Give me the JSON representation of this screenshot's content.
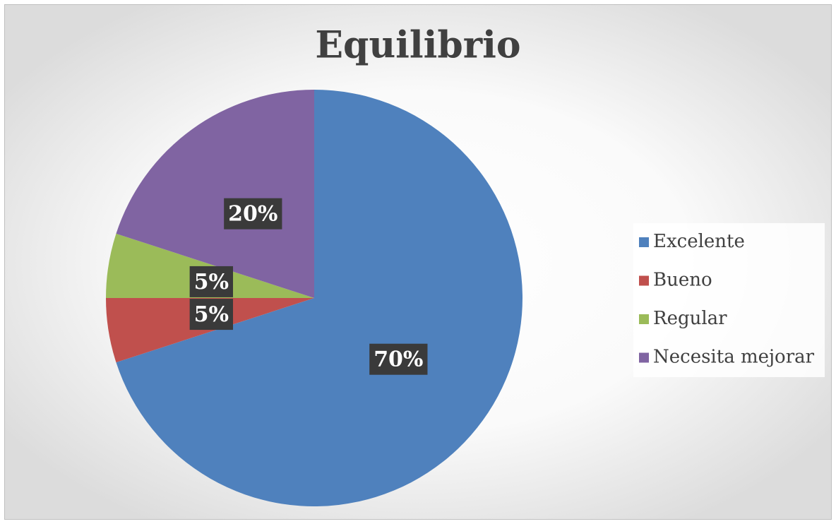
{
  "chart_data": {
    "type": "pie",
    "title": "Equilibrio",
    "categories": [
      "Excelente",
      "Bueno",
      "Regular",
      "Necesita mejorar"
    ],
    "values": [
      70,
      5,
      5,
      20
    ],
    "value_labels": [
      "70%",
      "5%",
      "5%",
      "20%"
    ],
    "colors": [
      "#4f81bd",
      "#c0504d",
      "#9bbb59",
      "#8064a2"
    ],
    "legend": "right"
  }
}
